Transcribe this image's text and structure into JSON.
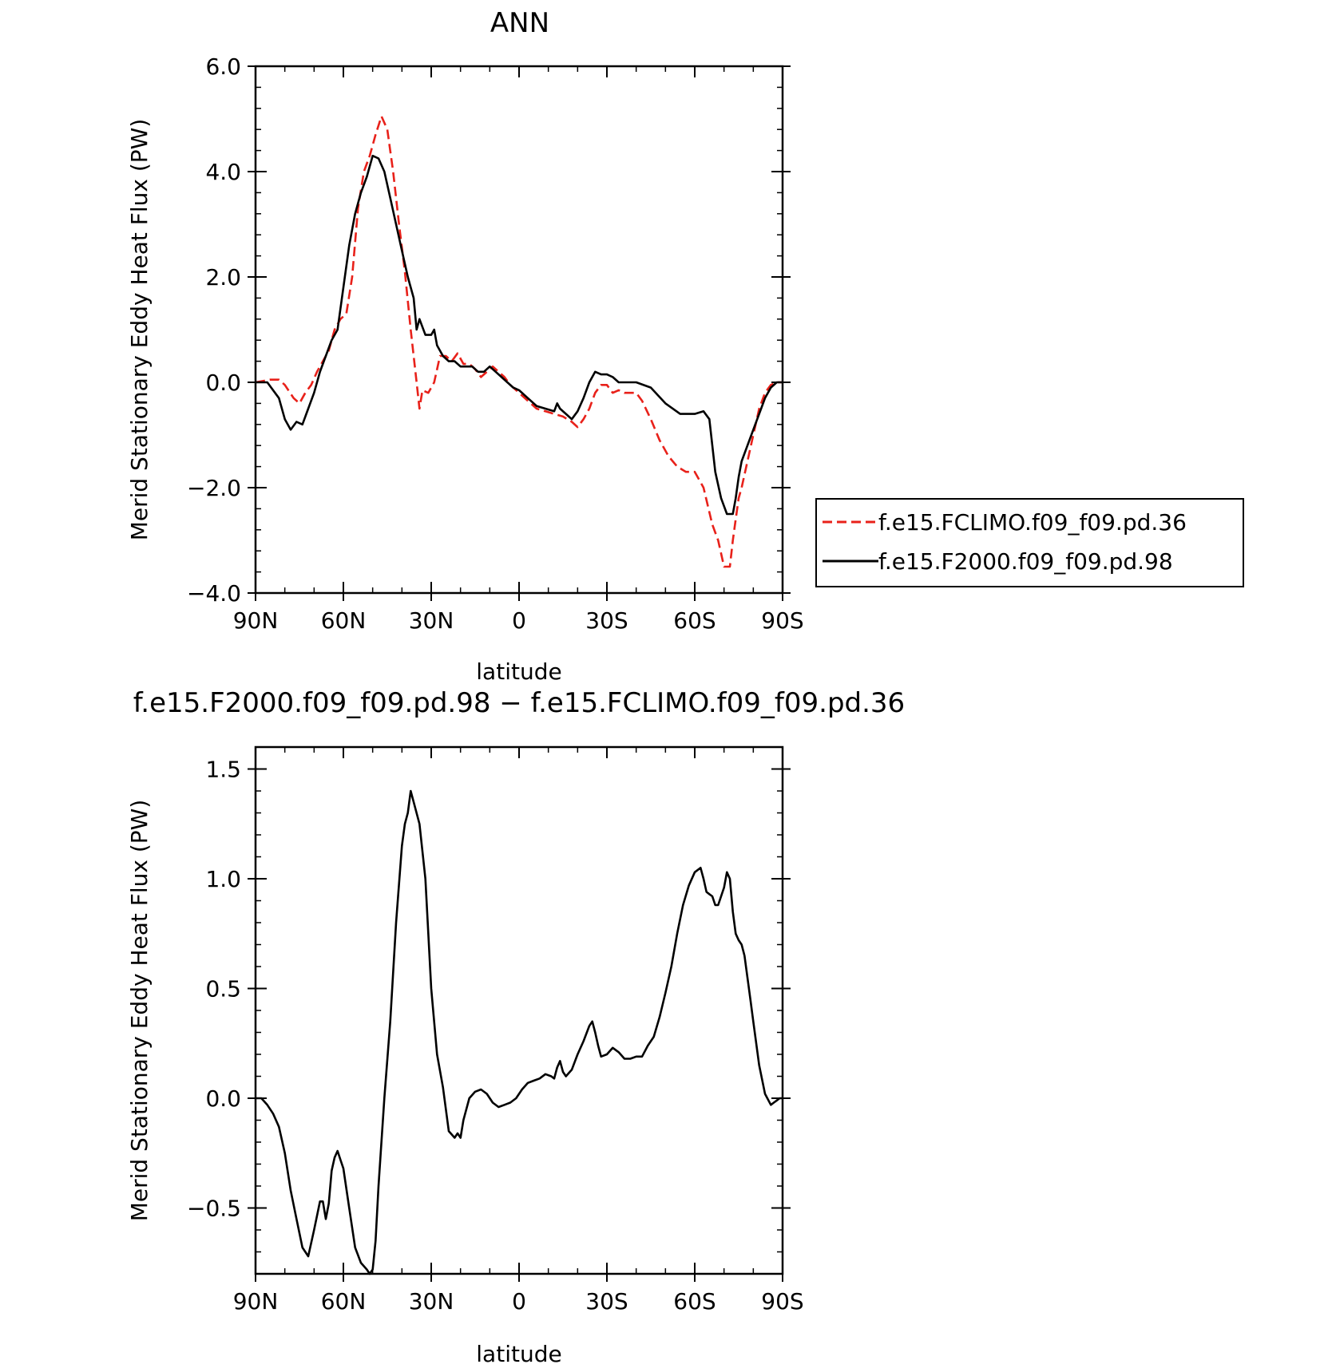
{
  "chart_data": [
    {
      "type": "line",
      "title": "ANN",
      "xlabel": "latitude",
      "ylabel": "Merid Stationary Eddy Heat Flux (PW)",
      "x_ticks": [
        -90,
        -60,
        -30,
        0,
        30,
        60,
        90
      ],
      "x_tick_labels": [
        "90N",
        "60N",
        "30N",
        "0",
        "30S",
        "60S",
        "90S"
      ],
      "xlim": [
        -90,
        90
      ],
      "ylim": [
        -4.0,
        6.0
      ],
      "y_ticks": [
        -4.0,
        -2.0,
        0.0,
        2.0,
        4.0,
        6.0
      ],
      "y_tick_labels": [
        "−4.0",
        "−2.0",
        "0.0",
        "2.0",
        "4.0",
        "6.0"
      ],
      "legend_position": "right",
      "series": [
        {
          "name": "f.e15.FCLIMO.f09_f09.pd.36",
          "color": "#e8211a",
          "dash": "dashed",
          "x": [
            -90,
            -85,
            -82,
            -80,
            -77,
            -75,
            -73,
            -71,
            -69,
            -67,
            -65,
            -63,
            -61,
            -59,
            -57,
            -55,
            -53,
            -51,
            -49,
            -47,
            -45,
            -43,
            -41,
            -39,
            -37,
            -35,
            -34,
            -33,
            -31,
            -29,
            -27,
            -25,
            -23,
            -21,
            -19,
            -17,
            -15,
            -13,
            -11,
            -9,
            -7,
            -5,
            -3,
            0,
            3,
            6,
            9,
            12,
            15,
            18,
            20,
            22,
            24,
            26,
            28,
            30,
            32,
            34,
            36,
            38,
            40,
            42,
            45,
            48,
            51,
            54,
            57,
            60,
            63,
            66,
            68,
            70,
            72,
            73,
            74,
            75,
            76,
            78,
            80,
            82,
            84,
            86,
            88,
            90
          ],
          "y": [
            0.0,
            0.05,
            0.05,
            -0.05,
            -0.3,
            -0.4,
            -0.2,
            -0.05,
            0.2,
            0.4,
            0.6,
            1.0,
            1.2,
            1.3,
            2.0,
            3.3,
            4.0,
            4.3,
            4.7,
            5.05,
            4.8,
            4.0,
            3.0,
            2.1,
            1.0,
            0.0,
            -0.5,
            -0.15,
            -0.2,
            0.0,
            0.5,
            0.5,
            0.4,
            0.55,
            0.35,
            0.35,
            0.25,
            0.1,
            0.2,
            0.3,
            0.2,
            0.1,
            -0.05,
            -0.2,
            -0.35,
            -0.5,
            -0.55,
            -0.6,
            -0.65,
            -0.75,
            -0.85,
            -0.7,
            -0.5,
            -0.2,
            -0.05,
            -0.05,
            -0.2,
            -0.15,
            -0.2,
            -0.2,
            -0.2,
            -0.35,
            -0.7,
            -1.1,
            -1.4,
            -1.6,
            -1.7,
            -1.7,
            -2.0,
            -2.7,
            -3.0,
            -3.5,
            -3.5,
            -3.0,
            -2.6,
            -2.2,
            -2.0,
            -1.5,
            -1.0,
            -0.5,
            -0.2,
            -0.05,
            0.0,
            0.0
          ]
        },
        {
          "name": "f.e15.F2000.f09_f09.pd.98",
          "color": "#000000",
          "dash": "solid",
          "x": [
            -90,
            -86,
            -82,
            -80,
            -78,
            -76,
            -74,
            -72,
            -70,
            -68,
            -66,
            -64,
            -62,
            -60,
            -58,
            -56,
            -54,
            -52,
            -50,
            -48,
            -46,
            -44,
            -42,
            -40,
            -38,
            -36,
            -35,
            -34,
            -32,
            -30,
            -29,
            -28,
            -26,
            -24,
            -22,
            -20,
            -18,
            -16,
            -14,
            -12,
            -10,
            -8,
            -6,
            -4,
            -2,
            0,
            3,
            6,
            9,
            12,
            13,
            14,
            16,
            18,
            20,
            22,
            24,
            26,
            28,
            30,
            32,
            34,
            36,
            38,
            40,
            45,
            50,
            55,
            60,
            63,
            65,
            67,
            69,
            71,
            73,
            74,
            75,
            76,
            78,
            80,
            82,
            84,
            86,
            88,
            90
          ],
          "y": [
            0.0,
            0.0,
            -0.3,
            -0.7,
            -0.9,
            -0.75,
            -0.8,
            -0.5,
            -0.2,
            0.2,
            0.5,
            0.8,
            1.0,
            1.8,
            2.6,
            3.2,
            3.6,
            3.9,
            4.3,
            4.25,
            4.0,
            3.5,
            3.0,
            2.5,
            2.0,
            1.6,
            1.0,
            1.2,
            0.9,
            0.9,
            1.0,
            0.7,
            0.5,
            0.4,
            0.4,
            0.3,
            0.3,
            0.3,
            0.2,
            0.2,
            0.3,
            0.2,
            0.1,
            0.0,
            -0.1,
            -0.15,
            -0.3,
            -0.45,
            -0.5,
            -0.55,
            -0.4,
            -0.5,
            -0.6,
            -0.7,
            -0.55,
            -0.3,
            0.0,
            0.2,
            0.15,
            0.15,
            0.1,
            0.0,
            0.0,
            0.0,
            0.0,
            -0.1,
            -0.4,
            -0.6,
            -0.6,
            -0.55,
            -0.7,
            -1.7,
            -2.2,
            -2.5,
            -2.5,
            -2.2,
            -1.8,
            -1.5,
            -1.2,
            -0.9,
            -0.6,
            -0.3,
            -0.1,
            0.0,
            0.0
          ]
        }
      ]
    },
    {
      "type": "line",
      "title": "f.e15.F2000.f09_f09.pd.98 − f.e15.FCLIMO.f09_f09.pd.36",
      "xlabel": "latitude",
      "ylabel": "Merid Stationary Eddy Heat Flux (PW)",
      "x_ticks": [
        -90,
        -60,
        -30,
        0,
        30,
        60,
        90
      ],
      "x_tick_labels": [
        "90N",
        "60N",
        "30N",
        "0",
        "30S",
        "60S",
        "90S"
      ],
      "xlim": [
        -90,
        90
      ],
      "ylim": [
        -0.8,
        1.6
      ],
      "y_ticks": [
        -0.5,
        0.0,
        0.5,
        1.0,
        1.5
      ],
      "y_tick_labels": [
        "−0.5",
        "0.0",
        "0.5",
        "1.0",
        "1.5"
      ],
      "series": [
        {
          "color": "#000000",
          "dash": "solid",
          "x": [
            -90,
            -88,
            -86,
            -84,
            -82,
            -80,
            -78,
            -76,
            -74,
            -72,
            -70,
            -68,
            -67,
            -66,
            -65,
            -64,
            -63,
            -62,
            -61,
            -60,
            -58,
            -56,
            -54,
            -52,
            -51,
            -50,
            -49,
            -48,
            -46,
            -44,
            -42,
            -40,
            -39,
            -38,
            -37,
            -36,
            -34,
            -32,
            -30,
            -28,
            -26,
            -24,
            -22,
            -21,
            -20,
            -19,
            -17,
            -15,
            -13,
            -11,
            -9,
            -7,
            -5,
            -3,
            -1,
            1,
            3,
            5,
            7,
            9,
            11,
            12,
            13,
            14,
            15,
            16,
            18,
            20,
            22,
            24,
            25,
            26,
            27,
            28,
            30,
            32,
            34,
            36,
            38,
            40,
            42,
            44,
            46,
            48,
            50,
            52,
            54,
            56,
            58,
            60,
            62,
            63,
            64,
            65,
            66,
            67,
            68,
            69,
            70,
            71,
            72,
            73,
            74,
            75,
            76,
            77,
            78,
            79,
            80,
            82,
            84,
            86,
            87,
            88,
            89,
            90
          ],
          "y": [
            0.0,
            0.0,
            -0.03,
            -0.07,
            -0.13,
            -0.25,
            -0.42,
            -0.55,
            -0.68,
            -0.72,
            -0.6,
            -0.47,
            -0.47,
            -0.55,
            -0.48,
            -0.33,
            -0.27,
            -0.24,
            -0.28,
            -0.32,
            -0.5,
            -0.68,
            -0.75,
            -0.78,
            -0.8,
            -0.78,
            -0.65,
            -0.4,
            0.0,
            0.35,
            0.8,
            1.15,
            1.25,
            1.3,
            1.4,
            1.35,
            1.25,
            1.0,
            0.5,
            0.2,
            0.05,
            -0.15,
            -0.18,
            -0.16,
            -0.18,
            -0.1,
            0.0,
            0.03,
            0.04,
            0.02,
            -0.02,
            -0.04,
            -0.03,
            -0.02,
            0.0,
            0.04,
            0.07,
            0.08,
            0.09,
            0.11,
            0.1,
            0.09,
            0.14,
            0.17,
            0.12,
            0.1,
            0.13,
            0.2,
            0.26,
            0.33,
            0.35,
            0.3,
            0.24,
            0.19,
            0.2,
            0.23,
            0.21,
            0.18,
            0.18,
            0.19,
            0.19,
            0.24,
            0.28,
            0.37,
            0.48,
            0.6,
            0.75,
            0.88,
            0.97,
            1.03,
            1.05,
            1.0,
            0.94,
            0.93,
            0.92,
            0.88,
            0.88,
            0.92,
            0.96,
            1.03,
            1.0,
            0.85,
            0.75,
            0.72,
            0.7,
            0.65,
            0.55,
            0.45,
            0.35,
            0.15,
            0.02,
            -0.03,
            -0.02,
            -0.01,
            0.0,
            0.0
          ]
        }
      ]
    }
  ]
}
